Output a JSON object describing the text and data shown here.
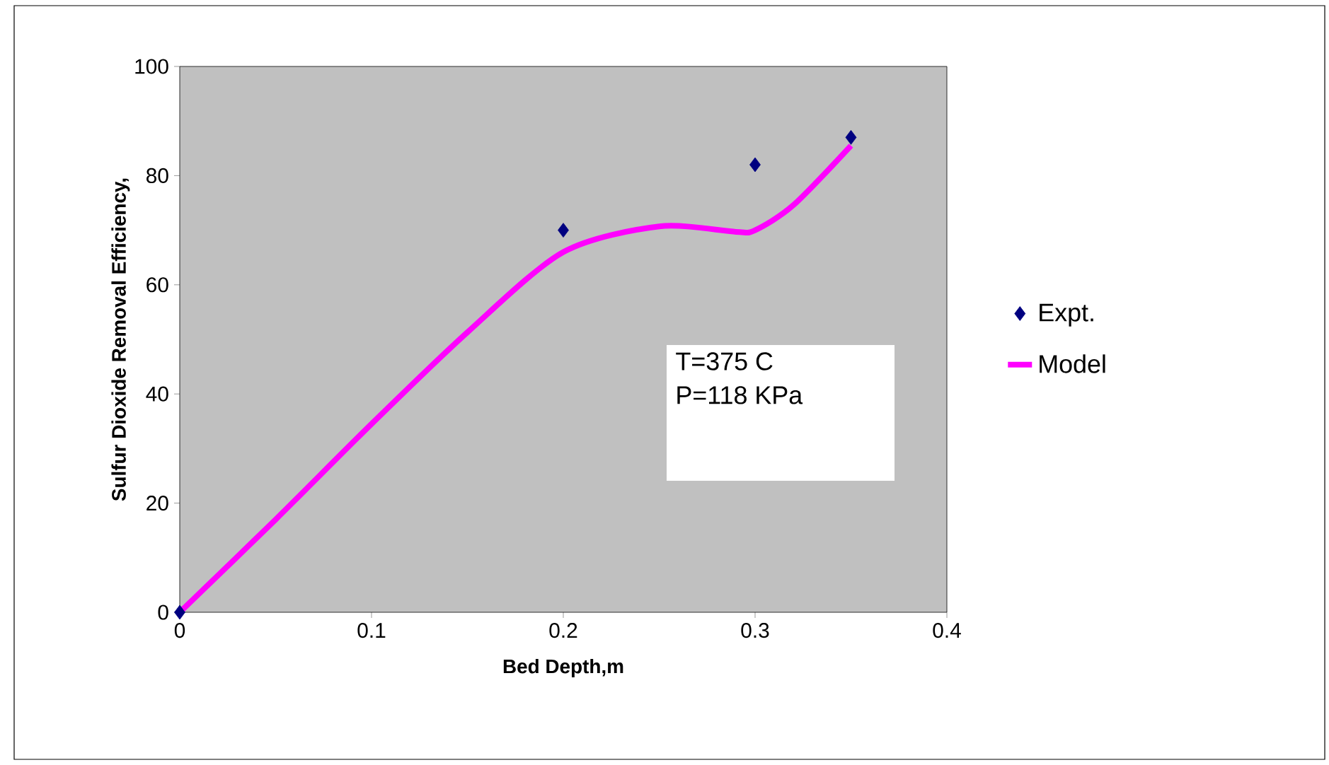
{
  "chart_data": {
    "type": "scatter",
    "xlabel": "Bed Depth,m",
    "ylabel": "Sulfur Dioxide Removal Efficiency,",
    "xlim": [
      0,
      0.4
    ],
    "ylim": [
      0,
      100
    ],
    "xticks": [
      0,
      0.1,
      0.2,
      0.3,
      0.4
    ],
    "yticks": [
      0,
      20,
      40,
      60,
      80,
      100
    ],
    "legend": "right",
    "annotations": [
      "T=375 C",
      "P=118 KPa"
    ],
    "series": [
      {
        "name": "Expt.",
        "marker": "diamond",
        "color": "#000080",
        "x": [
          0,
          0.2,
          0.3,
          0.35
        ],
        "values": [
          0,
          70,
          82,
          87
        ]
      },
      {
        "name": "Model",
        "type": "line",
        "marker": "none",
        "line_style": "solid",
        "color": "#ff00ff",
        "x": [
          0,
          0.05,
          0.1,
          0.15,
          0.2,
          0.25,
          0.29,
          0.3,
          0.32,
          0.35
        ],
        "values": [
          0,
          17,
          34.5,
          51.3,
          66,
          70.7,
          69.7,
          70,
          74.6,
          85.5
        ]
      }
    ]
  }
}
